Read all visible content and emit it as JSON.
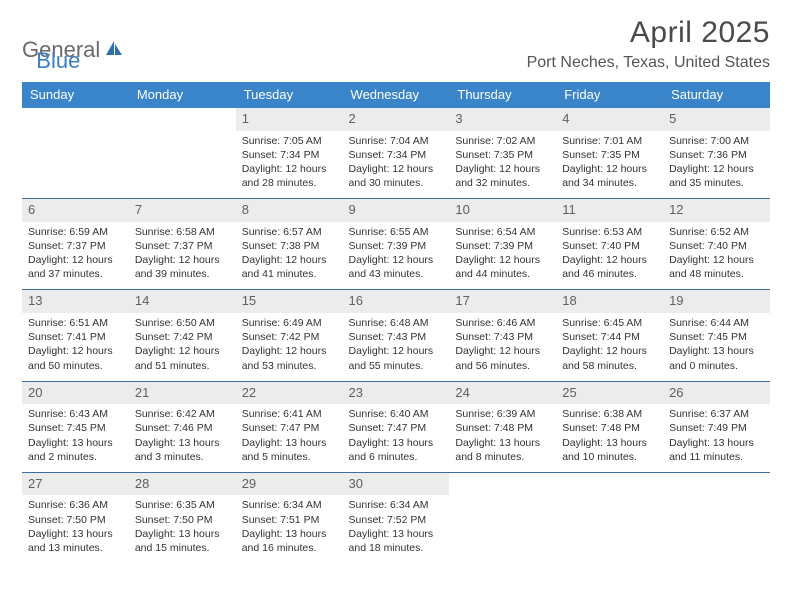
{
  "logo": {
    "word1": "General",
    "word2": "Blue"
  },
  "title": "April 2025",
  "location": "Port Neches, Texas, United States",
  "columns": [
    "Sunday",
    "Monday",
    "Tuesday",
    "Wednesday",
    "Thursday",
    "Friday",
    "Saturday"
  ],
  "header_bg": "#3a85c9",
  "header_fg": "#ffffff",
  "row_border": "#3a6fa0",
  "daynum_bg": "#ececec",
  "daynum_fg": "#606060",
  "logo_accent": "#3a7fc4",
  "logo_gray": "#6a6a6a",
  "weeks": [
    [
      null,
      null,
      {
        "n": "1",
        "sr": "Sunrise: 7:05 AM",
        "ss": "Sunset: 7:34 PM",
        "dl": "Daylight: 12 hours and 28 minutes."
      },
      {
        "n": "2",
        "sr": "Sunrise: 7:04 AM",
        "ss": "Sunset: 7:34 PM",
        "dl": "Daylight: 12 hours and 30 minutes."
      },
      {
        "n": "3",
        "sr": "Sunrise: 7:02 AM",
        "ss": "Sunset: 7:35 PM",
        "dl": "Daylight: 12 hours and 32 minutes."
      },
      {
        "n": "4",
        "sr": "Sunrise: 7:01 AM",
        "ss": "Sunset: 7:35 PM",
        "dl": "Daylight: 12 hours and 34 minutes."
      },
      {
        "n": "5",
        "sr": "Sunrise: 7:00 AM",
        "ss": "Sunset: 7:36 PM",
        "dl": "Daylight: 12 hours and 35 minutes."
      }
    ],
    [
      {
        "n": "6",
        "sr": "Sunrise: 6:59 AM",
        "ss": "Sunset: 7:37 PM",
        "dl": "Daylight: 12 hours and 37 minutes."
      },
      {
        "n": "7",
        "sr": "Sunrise: 6:58 AM",
        "ss": "Sunset: 7:37 PM",
        "dl": "Daylight: 12 hours and 39 minutes."
      },
      {
        "n": "8",
        "sr": "Sunrise: 6:57 AM",
        "ss": "Sunset: 7:38 PM",
        "dl": "Daylight: 12 hours and 41 minutes."
      },
      {
        "n": "9",
        "sr": "Sunrise: 6:55 AM",
        "ss": "Sunset: 7:39 PM",
        "dl": "Daylight: 12 hours and 43 minutes."
      },
      {
        "n": "10",
        "sr": "Sunrise: 6:54 AM",
        "ss": "Sunset: 7:39 PM",
        "dl": "Daylight: 12 hours and 44 minutes."
      },
      {
        "n": "11",
        "sr": "Sunrise: 6:53 AM",
        "ss": "Sunset: 7:40 PM",
        "dl": "Daylight: 12 hours and 46 minutes."
      },
      {
        "n": "12",
        "sr": "Sunrise: 6:52 AM",
        "ss": "Sunset: 7:40 PM",
        "dl": "Daylight: 12 hours and 48 minutes."
      }
    ],
    [
      {
        "n": "13",
        "sr": "Sunrise: 6:51 AM",
        "ss": "Sunset: 7:41 PM",
        "dl": "Daylight: 12 hours and 50 minutes."
      },
      {
        "n": "14",
        "sr": "Sunrise: 6:50 AM",
        "ss": "Sunset: 7:42 PM",
        "dl": "Daylight: 12 hours and 51 minutes."
      },
      {
        "n": "15",
        "sr": "Sunrise: 6:49 AM",
        "ss": "Sunset: 7:42 PM",
        "dl": "Daylight: 12 hours and 53 minutes."
      },
      {
        "n": "16",
        "sr": "Sunrise: 6:48 AM",
        "ss": "Sunset: 7:43 PM",
        "dl": "Daylight: 12 hours and 55 minutes."
      },
      {
        "n": "17",
        "sr": "Sunrise: 6:46 AM",
        "ss": "Sunset: 7:43 PM",
        "dl": "Daylight: 12 hours and 56 minutes."
      },
      {
        "n": "18",
        "sr": "Sunrise: 6:45 AM",
        "ss": "Sunset: 7:44 PM",
        "dl": "Daylight: 12 hours and 58 minutes."
      },
      {
        "n": "19",
        "sr": "Sunrise: 6:44 AM",
        "ss": "Sunset: 7:45 PM",
        "dl": "Daylight: 13 hours and 0 minutes."
      }
    ],
    [
      {
        "n": "20",
        "sr": "Sunrise: 6:43 AM",
        "ss": "Sunset: 7:45 PM",
        "dl": "Daylight: 13 hours and 2 minutes."
      },
      {
        "n": "21",
        "sr": "Sunrise: 6:42 AM",
        "ss": "Sunset: 7:46 PM",
        "dl": "Daylight: 13 hours and 3 minutes."
      },
      {
        "n": "22",
        "sr": "Sunrise: 6:41 AM",
        "ss": "Sunset: 7:47 PM",
        "dl": "Daylight: 13 hours and 5 minutes."
      },
      {
        "n": "23",
        "sr": "Sunrise: 6:40 AM",
        "ss": "Sunset: 7:47 PM",
        "dl": "Daylight: 13 hours and 6 minutes."
      },
      {
        "n": "24",
        "sr": "Sunrise: 6:39 AM",
        "ss": "Sunset: 7:48 PM",
        "dl": "Daylight: 13 hours and 8 minutes."
      },
      {
        "n": "25",
        "sr": "Sunrise: 6:38 AM",
        "ss": "Sunset: 7:48 PM",
        "dl": "Daylight: 13 hours and 10 minutes."
      },
      {
        "n": "26",
        "sr": "Sunrise: 6:37 AM",
        "ss": "Sunset: 7:49 PM",
        "dl": "Daylight: 13 hours and 11 minutes."
      }
    ],
    [
      {
        "n": "27",
        "sr": "Sunrise: 6:36 AM",
        "ss": "Sunset: 7:50 PM",
        "dl": "Daylight: 13 hours and 13 minutes."
      },
      {
        "n": "28",
        "sr": "Sunrise: 6:35 AM",
        "ss": "Sunset: 7:50 PM",
        "dl": "Daylight: 13 hours and 15 minutes."
      },
      {
        "n": "29",
        "sr": "Sunrise: 6:34 AM",
        "ss": "Sunset: 7:51 PM",
        "dl": "Daylight: 13 hours and 16 minutes."
      },
      {
        "n": "30",
        "sr": "Sunrise: 6:34 AM",
        "ss": "Sunset: 7:52 PM",
        "dl": "Daylight: 13 hours and 18 minutes."
      },
      null,
      null,
      null
    ]
  ]
}
